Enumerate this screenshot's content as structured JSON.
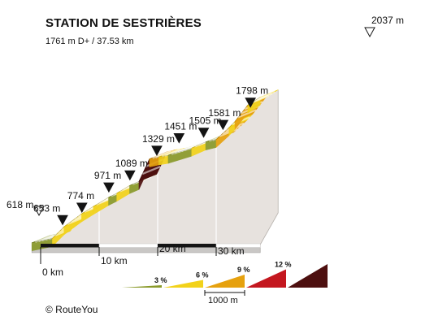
{
  "header": {
    "title": "STATION DE SESTRIÈRES",
    "subtitle": "1761 m D+ / 37.53 km"
  },
  "footer": {
    "copyright": "© RouteYou"
  },
  "colors": {
    "gradient_0_3": "#8a9a2a",
    "gradient_3_6": "#f2d21a",
    "gradient_6_9": "#e6a10e",
    "gradient_9_12": "#c4171f",
    "gradient_12_plus": "#4d0f0f",
    "side_face": "#e7e2de",
    "front_face": "#c9c7c5",
    "axis_bar": "#141414"
  },
  "legend": {
    "items": [
      {
        "label": "3 %",
        "color": "#8a9a2a"
      },
      {
        "label": "6 %",
        "color": "#f2d21a"
      },
      {
        "label": "9 %",
        "color": "#e6a10e"
      },
      {
        "label": "12 %",
        "color": "#c4171f"
      },
      {
        "label": "",
        "color": "#4d0f0f"
      }
    ],
    "scale_label": "1000 m"
  },
  "chart_data": {
    "type": "area",
    "title": "STATION DE SESTRIÈRES",
    "subtitle": "1761 m D+ / 37.53 km",
    "x_unit": "km",
    "y_unit": "m",
    "xlim": [
      0,
      37.53
    ],
    "x_ticks": [
      {
        "value": 0,
        "label": "0 km"
      },
      {
        "value": 10,
        "label": "10 km"
      },
      {
        "value": 20,
        "label": "20 km"
      },
      {
        "value": 30,
        "label": "30 km"
      }
    ],
    "markers": [
      {
        "km": -1.5,
        "elevation": 618,
        "label": "618 m",
        "symbol": "open"
      },
      {
        "km": 0.7,
        "elevation": 653,
        "label": "653 m",
        "symbol": "filled"
      },
      {
        "km": 4.0,
        "elevation": 774,
        "label": "774 m",
        "symbol": "filled"
      },
      {
        "km": 8.6,
        "elevation": 971,
        "label": "971 m",
        "symbol": "filled"
      },
      {
        "km": 12.2,
        "elevation": 1089,
        "label": "1089 m",
        "symbol": "filled"
      },
      {
        "km": 16.8,
        "elevation": 1329,
        "label": "1329 m",
        "symbol": "filled"
      },
      {
        "km": 20.6,
        "elevation": 1451,
        "label": "1451 m",
        "symbol": "filled"
      },
      {
        "km": 24.8,
        "elevation": 1505,
        "label": "1505 m",
        "symbol": "filled"
      },
      {
        "km": 28.1,
        "elevation": 1581,
        "label": "1581 m",
        "symbol": "filled"
      },
      {
        "km": 32.8,
        "elevation": 1798,
        "label": "1798 m",
        "symbol": "filled"
      },
      {
        "km": 36.5,
        "elevation": 2037,
        "label": "2037 m",
        "symbol": "open"
      }
    ],
    "segments": [
      {
        "from_km": -1.5,
        "to_km": 2.0,
        "from_m": 618,
        "to_m": 660,
        "gradient_class": "0-3"
      },
      {
        "from_km": 2.0,
        "to_km": 4.0,
        "from_m": 660,
        "to_m": 774,
        "gradient_class": "3-6"
      },
      {
        "from_km": 4.0,
        "to_km": 7.0,
        "from_m": 774,
        "to_m": 900,
        "gradient_class": "3-6"
      },
      {
        "from_km": 7.0,
        "to_km": 9.0,
        "from_m": 900,
        "to_m": 971,
        "gradient_class": "3-6"
      },
      {
        "from_km": 9.0,
        "to_km": 11.6,
        "from_m": 971,
        "to_m": 1060,
        "gradient_class": "3-6"
      },
      {
        "from_km": 11.6,
        "to_km": 13.0,
        "from_m": 1060,
        "to_m": 1100,
        "gradient_class": "0-3"
      },
      {
        "from_km": 13.0,
        "to_km": 15.2,
        "from_m": 1100,
        "to_m": 1175,
        "gradient_class": "3-6"
      },
      {
        "from_km": 15.2,
        "to_km": 16.8,
        "from_m": 1175,
        "to_m": 1215,
        "gradient_class": "0-3"
      },
      {
        "from_km": 16.8,
        "to_km": 18.6,
        "from_m": 1215,
        "to_m": 1435,
        "gradient_class": "12+"
      },
      {
        "from_km": 18.6,
        "to_km": 20.2,
        "from_m": 1435,
        "to_m": 1455,
        "gradient_class": "6-9"
      },
      {
        "from_km": 20.2,
        "to_km": 21.8,
        "from_m": 1455,
        "to_m": 1470,
        "gradient_class": "3-6"
      },
      {
        "from_km": 21.8,
        "to_km": 25.8,
        "from_m": 1470,
        "to_m": 1540,
        "gradient_class": "0-3"
      },
      {
        "from_km": 25.8,
        "to_km": 28.2,
        "from_m": 1540,
        "to_m": 1600,
        "gradient_class": "3-6"
      },
      {
        "from_km": 28.2,
        "to_km": 30.0,
        "from_m": 1600,
        "to_m": 1625,
        "gradient_class": "0-3"
      },
      {
        "from_km": 30.0,
        "to_km": 32.2,
        "from_m": 1625,
        "to_m": 1740,
        "gradient_class": "6-9"
      },
      {
        "from_km": 32.2,
        "to_km": 33.2,
        "from_m": 1740,
        "to_m": 1800,
        "gradient_class": "3-6"
      },
      {
        "from_km": 33.2,
        "to_km": 35.4,
        "from_m": 1800,
        "to_m": 1960,
        "gradient_class": "6-9"
      },
      {
        "from_km": 35.4,
        "to_km": 37.53,
        "from_m": 1960,
        "to_m": 2037,
        "gradient_class": "3-6"
      }
    ],
    "legend": [
      {
        "label": "3 %",
        "gradient_class": "0-3"
      },
      {
        "label": "6 %",
        "gradient_class": "3-6"
      },
      {
        "label": "9 %",
        "gradient_class": "6-9"
      },
      {
        "label": "12 %",
        "gradient_class": "9-12"
      },
      {
        "label": "",
        "gradient_class": "12+"
      }
    ],
    "legend_scale": "1000 m"
  }
}
